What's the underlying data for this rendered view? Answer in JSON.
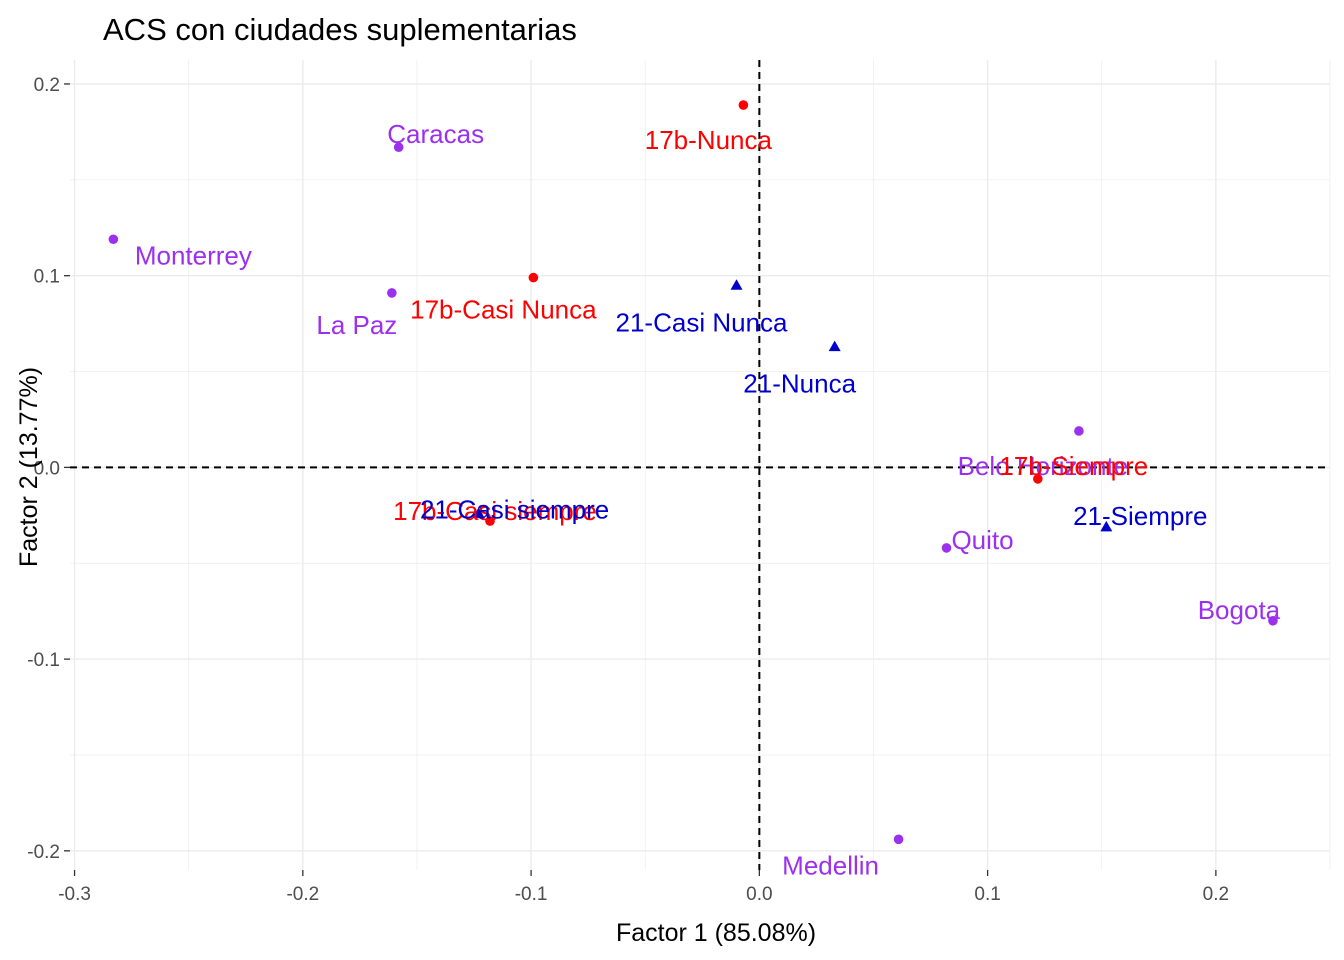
{
  "chart_data": {
    "type": "scatter",
    "title": "ACS con ciudades suplementarias",
    "xlabel": "Factor 1 (85.08%)",
    "ylabel": "Factor 2 (13.77%)",
    "xlim": [
      -0.302,
      0.25
    ],
    "ylim": [
      -0.21,
      0.2125
    ],
    "x_ticks": [
      -0.3,
      -0.2,
      -0.1,
      0.0,
      0.1,
      0.2
    ],
    "x_tick_labels": [
      "-0.3",
      "-0.2",
      "-0.1",
      "0.0",
      "0.1",
      "0.2"
    ],
    "y_ticks": [
      -0.2,
      -0.1,
      0.0,
      0.1,
      0.2
    ],
    "y_tick_labels": [
      "-0.2",
      "-0.1",
      "0.0",
      "0.1",
      "0.2"
    ],
    "grid": true,
    "reference_lines": {
      "x": 0,
      "y": 0,
      "style": "dashed"
    },
    "colors": {
      "cities": "#9b30ee",
      "q17b": "#ff0000",
      "q21": "#0000cd",
      "grid": "#ebebeb"
    },
    "series": [
      {
        "key": "cities",
        "marker": "circle",
        "color": "#9b30ee",
        "points": [
          {
            "label": "Caracas",
            "x": -0.158,
            "y": 0.167
          },
          {
            "label": "Monterrey",
            "x": -0.283,
            "y": 0.119
          },
          {
            "label": "La Paz",
            "x": -0.161,
            "y": 0.091
          },
          {
            "label": "Belo Horizonte",
            "x": 0.14,
            "y": 0.019
          },
          {
            "label": "Quito",
            "x": 0.082,
            "y": -0.042
          },
          {
            "label": "Bogota",
            "x": 0.225,
            "y": -0.08
          },
          {
            "label": "Medellin",
            "x": 0.061,
            "y": -0.194
          }
        ]
      },
      {
        "key": "q17b",
        "marker": "circle",
        "color": "#ff0000",
        "points": [
          {
            "label": "17b-Nunca",
            "x": -0.007,
            "y": 0.189
          },
          {
            "label": "17b-Casi Nunca",
            "x": -0.099,
            "y": 0.099
          },
          {
            "label": "17b-Siempre",
            "x": 0.122,
            "y": -0.006
          },
          {
            "label": "17b-Casi siempre",
            "x": -0.118,
            "y": -0.028
          }
        ]
      },
      {
        "key": "q21",
        "marker": "triangle",
        "color": "#0000cd",
        "points": [
          {
            "label": "21-Casi Nunca",
            "x": -0.01,
            "y": 0.095
          },
          {
            "label": "21-Nunca",
            "x": 0.033,
            "y": 0.063
          },
          {
            "label": "21-Siempre",
            "x": 0.152,
            "y": -0.031
          },
          {
            "label": "21-Casi siempre",
            "x": -0.123,
            "y": -0.024
          }
        ]
      }
    ]
  }
}
